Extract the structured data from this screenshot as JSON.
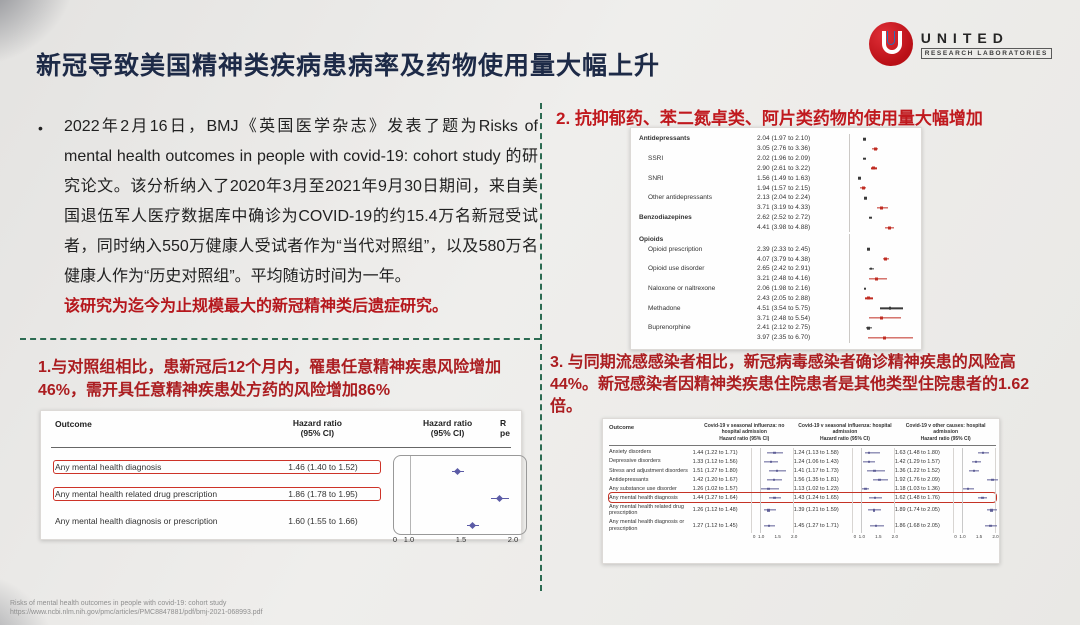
{
  "slide": {
    "title": "新冠导致美国精神类疾病患病率及药物使用量大幅上升",
    "logo": {
      "brand": "UNITED",
      "sub": "RESEARCH LABORATORIES"
    },
    "bullet_glyph": "•",
    "footer_line1": "Risks of mental health outcomes in people with covid-19: cohort study",
    "footer_line2": "https://www.ncbi.nlm.nih.gov/pmc/articles/PMC8847881/pdf/bmj-2021-068993.pdf"
  },
  "intro": {
    "text": "2022年2月16日，BMJ《英国医学杂志》发表了题为Risks of mental health outcomes in people with covid-19: cohort study 的研究论文。该分析纳入了2020年3月至2021年9月30日期间，来自美国退伍军人医疗数据库中确诊为COVID-19的约15.4万名新冠受试者，同时纳入550万健康人受试者作为“当代对照组”，以及580万名健康人作为“历史对照组”。平均随访时间为一年。",
    "highlight": "该研究为迄今为止规模最大的新冠精神类后遗症研究。"
  },
  "section2": {
    "heading": "2. 抗抑郁药、苯二氮卓类、阿片类药物的使用量大幅增加",
    "figure": {
      "type": "forest",
      "series_colors": {
        "black": "#3a3a3a",
        "red": "#c02c22"
      },
      "rows": [
        {
          "label": "Antidepressants",
          "style": "bold",
          "est_black": "2.04 (1.97 to 2.10)",
          "est_red": "3.05 (2.76 to 3.36)"
        },
        {
          "label": "SSRI",
          "style": "indent",
          "est_black": "2.02 (1.96 to 2.09)",
          "est_red": "2.90 (2.61 to 3.22)"
        },
        {
          "label": "SNRI",
          "style": "indent",
          "est_black": "1.56 (1.49 to 1.63)",
          "est_red": "1.94 (1.57 to 2.15)"
        },
        {
          "label": "Other antidepressants",
          "style": "indent",
          "est_black": "2.13 (2.04 to 2.24)",
          "est_red": "3.71 (3.19 to 4.33)"
        },
        {
          "label": "Benzodiazepines",
          "style": "bold",
          "est_black": "2.62 (2.52 to 2.72)",
          "est_red": "4.41 (3.98 to 4.88)"
        },
        {
          "label": "Opioids",
          "style": "header"
        },
        {
          "label": "Opioid prescription",
          "style": "indent",
          "est_black": "2.39 (2.33 to 2.45)",
          "est_red": "4.07 (3.79 to 4.38)"
        },
        {
          "label": "Opioid use disorder",
          "style": "indent",
          "est_black": "2.65 (2.42 to 2.91)",
          "est_red": "3.21 (2.48 to 4.16)"
        },
        {
          "label": "Naloxone or naltrexone",
          "style": "indent",
          "est_black": "2.06 (1.98 to 2.16)",
          "est_red": "2.43 (2.05 to 2.88)"
        },
        {
          "label": "Methadone",
          "style": "indent",
          "est_black": "4.51 (3.54 to 5.75)",
          "est_red": "3.71 (2.48 to 5.54)"
        },
        {
          "label": "Buprenorphine",
          "style": "indent",
          "est_black": "2.41 (2.12 to 2.75)",
          "est_red": "3.97 (2.35 to 6.70)"
        }
      ]
    }
  },
  "section1": {
    "heading": "1.与对照组相比，患新冠后12个月内，罹患任意精神疾患风险增加46%，需开具任意精神疾患处方药的风险增加86%",
    "table": {
      "col_outcome": "Outcome",
      "col_hr_line1": "Hazard ratio",
      "col_hr_line2": "(95% CI)",
      "truncated_col_line1": "R",
      "truncated_col_line2": "pe",
      "axis": [
        "0",
        "1.0",
        "1.5",
        "2.0"
      ],
      "marker_color": "#5b5ba6",
      "rows": [
        {
          "outcome": "Any mental health diagnosis",
          "hr": "1.46 (1.40 to 1.52)",
          "boxed": true
        },
        {
          "outcome": "Any mental health related drug prescription",
          "hr": "1.86 (1.78 to 1.95)",
          "boxed": true
        },
        {
          "outcome": "Any mental health diagnosis or prescription",
          "hr": "1.60 (1.55 to 1.66)",
          "boxed": false
        }
      ]
    }
  },
  "section3": {
    "heading": "3. 与同期流感感染者相比，新冠病毒感染者确诊精神疾患的风险高44%。新冠感染者因精神类疾患住院患者是其他类型住院患者的1.62倍。",
    "table": {
      "col_outcome": "Outcome",
      "groups": [
        {
          "name": "Covid-19 v seasonal influenza: no hospital admission",
          "sub": "Hazard ratio (95% CI)"
        },
        {
          "name": "Covid-19 v seasonal influenza: hospital admission",
          "sub": "Hazard ratio (95% CI)"
        },
        {
          "name": "Covid-19 v other causes: hospital admission",
          "sub": "Hazard ratio (95% CI)"
        }
      ],
      "axis": "0 1.0 1.5 2.0",
      "marker_color": "#5e5e96",
      "rows": [
        {
          "outcome": "Anxiety disorders",
          "hr": [
            "1.44 (1.22 to 1.71)",
            "1.24 (1.13 to 1.58)",
            "1.63 (1.48 to 1.80)"
          ],
          "boxed": false
        },
        {
          "outcome": "Depressive disorders",
          "hr": [
            "1.33 (1.12 to 1.56)",
            "1.24 (1.06 to 1.43)",
            "1.42 (1.29 to 1.57)"
          ],
          "boxed": false
        },
        {
          "outcome": "Stress and adjustment disorders",
          "hr": [
            "1.51 (1.27 to 1.80)",
            "1.41 (1.17 to 1.73)",
            "1.36 (1.22 to 1.52)"
          ],
          "boxed": false
        },
        {
          "outcome": "Antidepressants",
          "hr": [
            "1.42 (1.20 to 1.67)",
            "1.56 (1.35 to 1.81)",
            "1.92 (1.76 to 2.09)"
          ],
          "boxed": false
        },
        {
          "outcome": "Any substance use disorder",
          "hr": [
            "1.26 (1.02 to 1.57)",
            "1.13 (1.02 to 1.23)",
            "1.18 (1.03 to 1.36)"
          ],
          "boxed": false
        },
        {
          "outcome": "Any mental health diagnosis",
          "hr": [
            "1.44 (1.27 to 1.64)",
            "1.43 (1.24 to 1.65)",
            "1.62 (1.48 to 1.76)"
          ],
          "boxed": true
        },
        {
          "outcome": "Any mental health related drug prescription",
          "hr": [
            "1.26 (1.12 to 1.48)",
            "1.39 (1.21 to 1.59)",
            "1.89 (1.74 to 2.05)"
          ],
          "boxed": false
        },
        {
          "outcome": "Any mental health diagnosis or prescription",
          "hr": [
            "1.27 (1.12 to 1.45)",
            "1.45 (1.27 to 1.71)",
            "1.86 (1.68 to 2.05)"
          ],
          "boxed": false
        }
      ]
    }
  },
  "colors": {
    "title_navy": "#1d2a47",
    "heading_red": "#ab1d20",
    "highlight_red": "#b5171c",
    "divider_green": "#2c6b52",
    "logo_red": "#b90f16"
  }
}
